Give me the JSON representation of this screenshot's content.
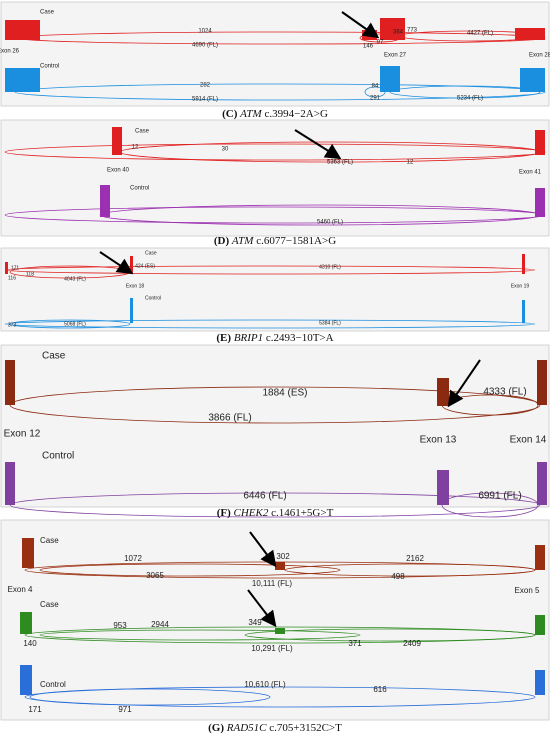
{
  "panels": [
    {
      "caption": {
        "label": "(C)",
        "gene": "ATM",
        "variant": "c.3994−2A>G"
      },
      "tracks": [
        {
          "label": "Case",
          "junctions": [
            "1024",
            "4690 (FL)",
            "146",
            "97",
            "364",
            "773",
            "4427 (FL)"
          ]
        },
        {
          "label": "Control",
          "junctions": [
            "282",
            "5914 (FL)",
            "84",
            "291",
            "5234 (FL)"
          ]
        }
      ],
      "exons": [
        "Exon 26",
        "Exon 27",
        "Exon 28"
      ]
    },
    {
      "caption": {
        "label": "(D)",
        "gene": "ATM",
        "variant": "c.6077−1581A>G"
      },
      "tracks": [
        {
          "label": "Case",
          "junctions": [
            "12",
            "30",
            "5363 (FL)",
            "12"
          ]
        },
        {
          "label": "Control",
          "junctions": [
            "5460 (FL)"
          ]
        }
      ],
      "exons": [
        "Exon 40",
        "Exon 41"
      ]
    },
    {
      "caption": {
        "label": "(E)",
        "gene": "BRIP1",
        "variant": "c.2493−10T>A"
      },
      "tracks": [
        {
          "label": "Case",
          "junctions": [
            "171",
            "116",
            "118",
            "4043 (FL)",
            "424 (ES)",
            "4310 (FL)"
          ]
        },
        {
          "label": "Control",
          "junctions": [
            "373",
            "5068 (FL)",
            "5384 (FL)"
          ]
        }
      ],
      "exons": [
        "Exon 18",
        "Exon 19"
      ]
    },
    {
      "caption": {
        "label": "(F)",
        "gene": "CHEK2",
        "variant": "c.1461+5G>T"
      },
      "tracks": [
        {
          "label": "Case",
          "junctions": [
            "1884 (ES)",
            "4333 (FL)",
            "3866 (FL)"
          ]
        },
        {
          "label": "Control",
          "junctions": [
            "6446 (FL)",
            "6991 (FL)"
          ]
        }
      ],
      "exons": [
        "Exon 12",
        "Exon 13",
        "Exon 14"
      ]
    },
    {
      "caption": {
        "label": "(G)",
        "gene": "RAD51C",
        "variant": "c.705+3152C>T"
      },
      "tracks": [
        {
          "label": "Case",
          "junctions": [
            "1072",
            "302",
            "2162",
            "3065",
            "10,111 (FL)",
            "498"
          ]
        },
        {
          "label": "Case",
          "junctions": [
            "953",
            "2944",
            "349",
            "140",
            "10,291 (FL)",
            "371",
            "2409"
          ]
        },
        {
          "label": "Control",
          "junctions": [
            "10,610 (FL)",
            "616",
            "171",
            "971"
          ]
        }
      ],
      "exons": [
        "Exon 4",
        "Exon 5"
      ]
    }
  ]
}
